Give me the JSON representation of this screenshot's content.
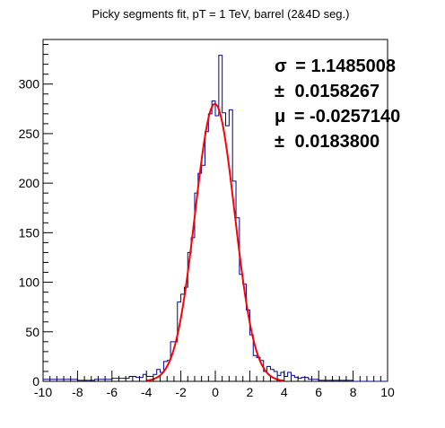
{
  "chart_data": {
    "type": "histogram",
    "title": "Picky segments fit, pT = 1 TeV, barrel (2&4D seg.)",
    "xlabel": "",
    "ylabel": "",
    "xlim": [
      -10,
      10
    ],
    "ylim": [
      0,
      345
    ],
    "x_ticks": [
      -10,
      -8,
      -6,
      -4,
      -2,
      0,
      2,
      4,
      6,
      8,
      10
    ],
    "x_tick_labels": [
      "-10",
      "-8",
      "-6",
      "-4",
      "-2",
      "0",
      "2",
      "4",
      "6",
      "8",
      "10"
    ],
    "y_ticks": [
      0,
      50,
      100,
      150,
      200,
      250,
      300
    ],
    "y_tick_labels": [
      "0",
      "50",
      "100",
      "150",
      "200",
      "250",
      "300"
    ],
    "grid": false,
    "legend": "none",
    "bin_width": 0.2,
    "bins": [
      {
        "x0": -10.0,
        "x1": -8.0,
        "y": 2
      },
      {
        "x0": -8.0,
        "x1": -7.0,
        "y": 1
      },
      {
        "x0": -7.0,
        "x1": -6.0,
        "y": 2
      },
      {
        "x0": -6.0,
        "x1": -5.0,
        "y": 3
      },
      {
        "x0": -5.0,
        "x1": -4.6,
        "y": 5
      },
      {
        "x0": -4.6,
        "x1": -4.2,
        "y": 4
      },
      {
        "x0": -4.2,
        "x1": -4.0,
        "y": 7
      },
      {
        "x0": -4.0,
        "x1": -3.8,
        "y": 5
      },
      {
        "x0": -3.8,
        "x1": -3.6,
        "y": 5
      },
      {
        "x0": -3.6,
        "x1": -3.4,
        "y": 7
      },
      {
        "x0": -3.4,
        "x1": -3.2,
        "y": 12
      },
      {
        "x0": -3.2,
        "x1": -3.0,
        "y": 9
      },
      {
        "x0": -3.0,
        "x1": -2.8,
        "y": 20
      },
      {
        "x0": -2.8,
        "x1": -2.6,
        "y": 21
      },
      {
        "x0": -2.6,
        "x1": -2.4,
        "y": 40
      },
      {
        "x0": -2.4,
        "x1": -2.2,
        "y": 40
      },
      {
        "x0": -2.2,
        "x1": -2.0,
        "y": 80
      },
      {
        "x0": -2.0,
        "x1": -1.8,
        "y": 88
      },
      {
        "x0": -1.8,
        "x1": -1.6,
        "y": 95
      },
      {
        "x0": -1.6,
        "x1": -1.4,
        "y": 130
      },
      {
        "x0": -1.4,
        "x1": -1.2,
        "y": 145
      },
      {
        "x0": -1.2,
        "x1": -1.0,
        "y": 190
      },
      {
        "x0": -1.0,
        "x1": -0.8,
        "y": 210
      },
      {
        "x0": -0.8,
        "x1": -0.6,
        "y": 218
      },
      {
        "x0": -0.6,
        "x1": -0.4,
        "y": 252
      },
      {
        "x0": -0.4,
        "x1": -0.2,
        "y": 270
      },
      {
        "x0": -0.2,
        "x1": 0.0,
        "y": 283
      },
      {
        "x0": 0.0,
        "x1": 0.2,
        "y": 268
      },
      {
        "x0": 0.2,
        "x1": 0.4,
        "y": 329
      },
      {
        "x0": 0.4,
        "x1": 0.6,
        "y": 271
      },
      {
        "x0": 0.6,
        "x1": 0.8,
        "y": 258
      },
      {
        "x0": 0.8,
        "x1": 1.0,
        "y": 274
      },
      {
        "x0": 1.0,
        "x1": 1.2,
        "y": 202
      },
      {
        "x0": 1.2,
        "x1": 1.4,
        "y": 165
      },
      {
        "x0": 1.4,
        "x1": 1.6,
        "y": 108
      },
      {
        "x0": 1.6,
        "x1": 1.8,
        "y": 98
      },
      {
        "x0": 1.8,
        "x1": 2.0,
        "y": 72
      },
      {
        "x0": 2.0,
        "x1": 2.2,
        "y": 47
      },
      {
        "x0": 2.2,
        "x1": 2.4,
        "y": 26
      },
      {
        "x0": 2.4,
        "x1": 2.6,
        "y": 24
      },
      {
        "x0": 2.6,
        "x1": 2.8,
        "y": 21
      },
      {
        "x0": 2.8,
        "x1": 3.0,
        "y": 10
      },
      {
        "x0": 3.0,
        "x1": 3.2,
        "y": 15
      },
      {
        "x0": 3.2,
        "x1": 3.4,
        "y": 12
      },
      {
        "x0": 3.4,
        "x1": 3.6,
        "y": 10
      },
      {
        "x0": 3.6,
        "x1": 3.8,
        "y": 6
      },
      {
        "x0": 3.8,
        "x1": 4.0,
        "y": 9
      },
      {
        "x0": 4.0,
        "x1": 4.2,
        "y": 5
      },
      {
        "x0": 4.2,
        "x1": 4.4,
        "y": 9
      },
      {
        "x0": 4.4,
        "x1": 4.6,
        "y": 6
      },
      {
        "x0": 4.6,
        "x1": 4.8,
        "y": 4
      },
      {
        "x0": 4.8,
        "x1": 5.0,
        "y": 3
      },
      {
        "x0": 5.0,
        "x1": 5.4,
        "y": 4
      },
      {
        "x0": 5.4,
        "x1": 6.0,
        "y": 2
      },
      {
        "x0": 6.0,
        "x1": 8.0,
        "y": 1
      },
      {
        "x0": 8.0,
        "x1": 10.0,
        "y": 0
      }
    ],
    "fit": {
      "type": "gaussian",
      "mean": -0.025714,
      "sigma": 1.1485008,
      "amplitude": 280,
      "range": [
        -4,
        4
      ],
      "color": "#ff0000"
    },
    "histogram_color": "#000099",
    "annotations": {
      "sigma_symbol": "σ",
      "sigma_value": "= 1.1485008",
      "sigma_err_symbol": "±",
      "sigma_err_value": "0.0158267",
      "mu_symbol": "μ",
      "mu_value": "= -0.0257140",
      "mu_err_symbol": "±",
      "mu_err_value": "0.0183800"
    }
  }
}
